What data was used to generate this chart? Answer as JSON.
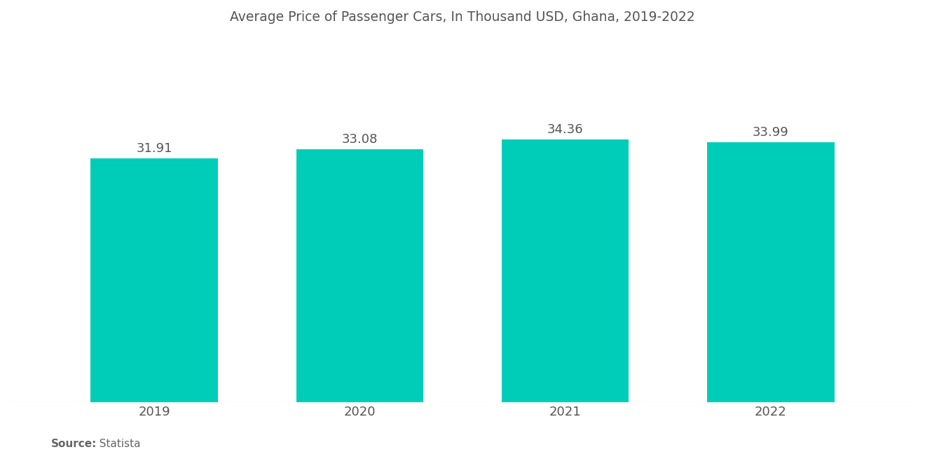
{
  "title": "Average Price of Passenger Cars, In Thousand USD, Ghana, 2019-2022",
  "categories": [
    "2019",
    "2020",
    "2021",
    "2022"
  ],
  "values": [
    31.91,
    33.08,
    34.36,
    33.99
  ],
  "bar_color": "#00CDB8",
  "background_color": "#ffffff",
  "title_fontsize": 13.5,
  "tick_fontsize": 13,
  "value_fontsize": 13,
  "source_label": "Source:",
  "source_value": "  Statista",
  "ylim": [
    0,
    46
  ],
  "bar_width": 0.62,
  "title_color": "#555555",
  "tick_color": "#555555",
  "value_color": "#555555",
  "source_color": "#666666"
}
